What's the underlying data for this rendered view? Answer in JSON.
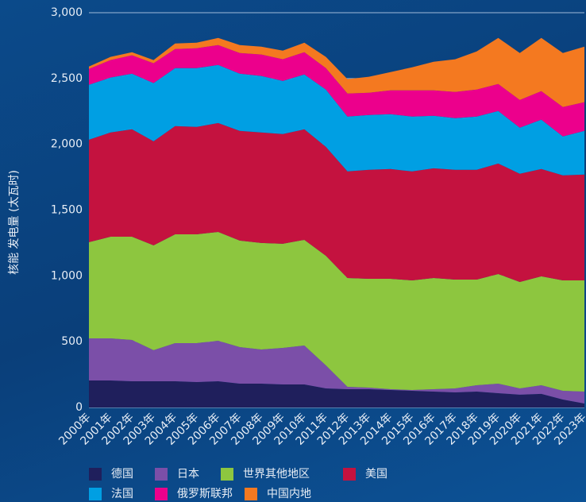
{
  "chart_data": {
    "type": "stacked_area",
    "y_label": "核能 发电量 (太瓦时)",
    "categories": [
      "2000年",
      "2001年",
      "2002年",
      "2003年",
      "2004年",
      "2005年",
      "2006年",
      "2007年",
      "2008年",
      "2009年",
      "2010年",
      "2011年",
      "2012年",
      "2013年",
      "2014年",
      "2015年",
      "2016年",
      "2017年",
      "2018年",
      "2019年",
      "2020年",
      "2021年",
      "2022年",
      "2023年"
    ],
    "ylim": [
      0,
      3000
    ],
    "yticks": [
      0,
      500,
      {
        "value": 1000,
        "label": "1,000"
      },
      {
        "value": 1500,
        "label": "1,500"
      },
      {
        "value": 2000,
        "label": "2,000"
      },
      {
        "value": 2500,
        "label": "2,500"
      },
      {
        "value": 3000,
        "label": "3,000"
      }
    ],
    "series": [
      {
        "name": "德国",
        "color": "#1f1f5c",
        "values": [
          205,
          205,
          199,
          199,
          199,
          193,
          199,
          181,
          181,
          175,
          175,
          145,
          139,
          139,
          133,
          127,
          121,
          115,
          121,
          109,
          97,
          103,
          60,
          30
        ]
      },
      {
        "name": "日本",
        "color": "#7b4fa8",
        "values": [
          320,
          320,
          314,
          236,
          290,
          296,
          308,
          278,
          260,
          278,
          296,
          175,
          18,
          12,
          6,
          6,
          18,
          30,
          48,
          72,
          48,
          66,
          67,
          91
        ]
      },
      {
        "name": "世界其他地区",
        "color": "#8dc63f",
        "values": [
          731,
          773,
          785,
          797,
          827,
          827,
          827,
          809,
          809,
          791,
          803,
          833,
          827,
          827,
          839,
          833,
          845,
          827,
          803,
          833,
          809,
          828,
          839,
          845
        ]
      },
      {
        "name": "美国",
        "color": "#c4123f",
        "values": [
          779,
          792,
          816,
          791,
          822,
          816,
          828,
          834,
          840,
          834,
          840,
          828,
          810,
          828,
          834,
          828,
          834,
          834,
          834,
          840,
          822,
          815,
          798,
          804
        ]
      },
      {
        "name": "法国",
        "color": "#009fe3",
        "values": [
          417,
          417,
          423,
          442,
          441,
          447,
          441,
          435,
          429,
          404,
          417,
          435,
          417,
          417,
          417,
          417,
          399,
          393,
          405,
          399,
          350,
          375,
          296,
          332
        ]
      },
      {
        "name": "俄罗斯联邦",
        "color": "#ec008c",
        "values": [
          121,
          133,
          139,
          151,
          145,
          151,
          151,
          157,
          163,
          164,
          169,
          163,
          175,
          169,
          181,
          199,
          193,
          199,
          205,
          205,
          211,
          217,
          223,
          218
        ]
      },
      {
        "name": "中国内地",
        "color": "#f47920",
        "values": [
          18,
          24,
          24,
          24,
          42,
          42,
          54,
          60,
          60,
          66,
          72,
          85,
          109,
          121,
          139,
          175,
          217,
          248,
          290,
          350,
          357,
          404,
          411,
          422
        ]
      }
    ],
    "grid": true
  }
}
